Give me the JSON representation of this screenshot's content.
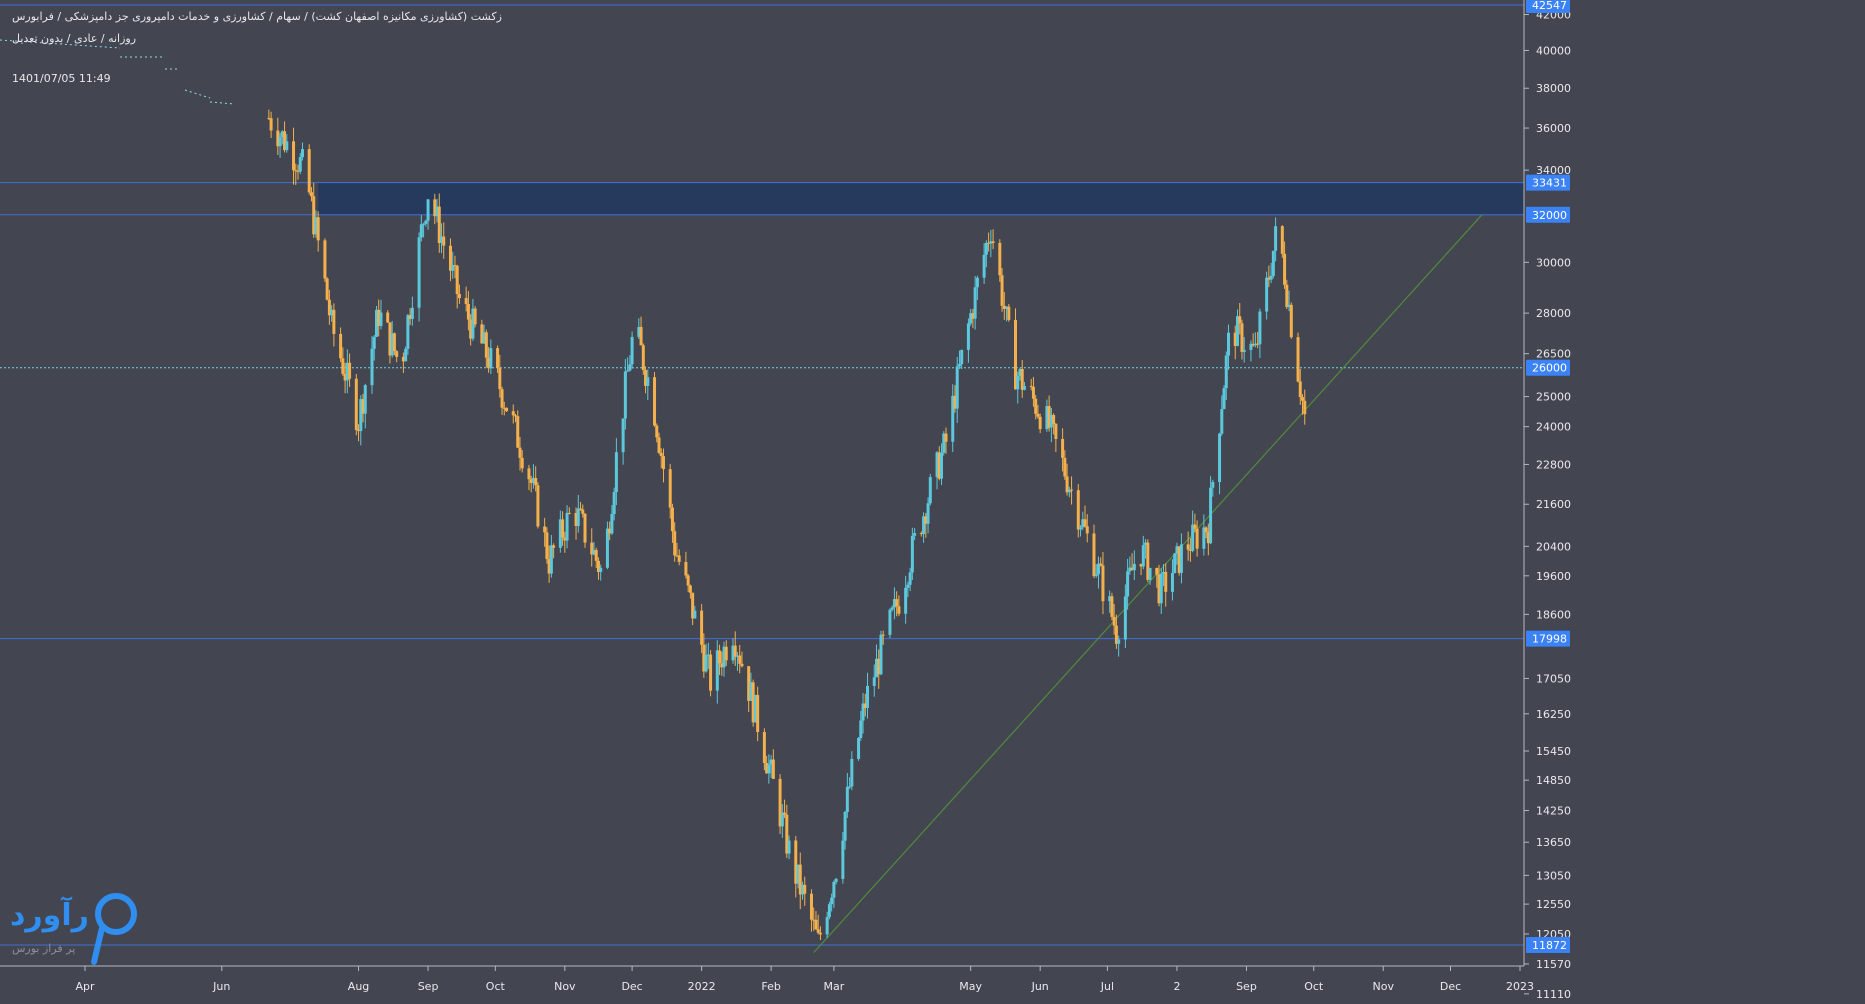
{
  "header": {
    "title": "زکشت (کشاورزی مکانیزه اصفهان کشت) / سهام / کشاورزی و خدمات دامپروری جز دامپزشکی / فرابورس",
    "subtitle": "روزانه / عادی / بدون تعدیل",
    "datetime": "1401/07/05 11:49"
  },
  "logo": {
    "word": "رآورد",
    "tagline": "پر فراز بورس"
  },
  "colors": {
    "background": "#434651",
    "up_candle": "#5bc8dc",
    "down_candle": "#f3b04c",
    "level_line": "#3f6fd6",
    "zone_fill": "#243a5e",
    "trendline": "#4f8c3a",
    "badge": "#3b82f6",
    "logo": "#2f8ef0"
  },
  "chart_data": {
    "type": "candlestick",
    "title": "",
    "x_axis_labels": [
      "Apr",
      "Jun",
      "Aug",
      "Sep",
      "Oct",
      "Nov",
      "Dec",
      "2022",
      "Feb",
      "Mar",
      "May",
      "Jun",
      "Jul",
      "2",
      "Sep",
      "Oct",
      "Nov",
      "Dec",
      "2023"
    ],
    "y_axis_labels": [
      42000,
      40000,
      38000,
      36000,
      34000,
      30000,
      28000,
      26500,
      25000,
      24000,
      22800,
      21600,
      20400,
      19600,
      18600,
      17050,
      16250,
      15450,
      14850,
      14250,
      13650,
      13050,
      12550,
      12050,
      11570,
      11110
    ],
    "highlighted_levels": [
      42547,
      33431,
      32000,
      26000,
      17998,
      11872
    ],
    "resistance_zone": {
      "low": 32000,
      "high": 33431
    },
    "trendline": {
      "start": {
        "date": "2022-02-20",
        "price": 11750
      },
      "end": {
        "date": "2022-12-15",
        "price": 32000
      }
    },
    "date_range": [
      "2021-03-21",
      "2022-09-27"
    ],
    "waypoints": [
      [
        "2021-06-22",
        36500
      ],
      [
        "2021-07-08",
        34000
      ],
      [
        "2021-07-20",
        27500
      ],
      [
        "2021-08-01",
        24200
      ],
      [
        "2021-08-10",
        28000
      ],
      [
        "2021-08-20",
        26000
      ],
      [
        "2021-09-01",
        33000
      ],
      [
        "2021-09-15",
        28500
      ],
      [
        "2021-09-30",
        26000
      ],
      [
        "2021-10-15",
        22800
      ],
      [
        "2021-10-25",
        20000
      ],
      [
        "2021-11-05",
        21500
      ],
      [
        "2021-11-18",
        19600
      ],
      [
        "2021-12-02",
        27500
      ],
      [
        "2021-12-10",
        25000
      ],
      [
        "2021-12-20",
        20400
      ],
      [
        "2022-01-05",
        17000
      ],
      [
        "2022-01-15",
        18200
      ],
      [
        "2022-01-30",
        15300
      ],
      [
        "2022-02-10",
        13300
      ],
      [
        "2022-02-22",
        11900
      ],
      [
        "2022-03-02",
        13200
      ],
      [
        "2022-03-15",
        16500
      ],
      [
        "2022-03-30",
        19000
      ],
      [
        "2022-04-20",
        23500
      ],
      [
        "2022-05-10",
        31500
      ],
      [
        "2022-05-20",
        26000
      ],
      [
        "2022-06-05",
        24000
      ],
      [
        "2022-06-20",
        21000
      ],
      [
        "2022-07-05",
        18200
      ],
      [
        "2022-07-15",
        20400
      ],
      [
        "2022-07-25",
        19200
      ],
      [
        "2022-08-05",
        20400
      ],
      [
        "2022-08-15",
        21000
      ],
      [
        "2022-08-25",
        27500
      ],
      [
        "2022-09-05",
        26500
      ],
      [
        "2022-09-15",
        31500
      ],
      [
        "2022-09-22",
        27000
      ],
      [
        "2022-09-27",
        24300
      ]
    ]
  }
}
